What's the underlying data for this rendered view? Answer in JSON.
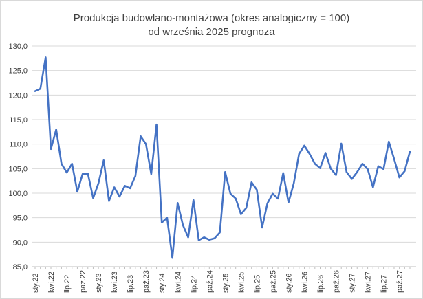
{
  "chart_data": {
    "type": "line",
    "title": "Produkcja budowlano-montażowa (okres analogiczny = 100)",
    "subtitle": "od września 2025 prognoza",
    "xlabel": "",
    "ylabel": "",
    "ylim": [
      85,
      130
    ],
    "yticks": [
      "85,0",
      "90,0",
      "95,0",
      "100,0",
      "105,0",
      "110,0",
      "115,0",
      "120,0",
      "125,0",
      "130,0"
    ],
    "grid": true,
    "legend": "none",
    "series_color": "#4472c4",
    "x_tick_labels": [
      "sty.22",
      "kwi.22",
      "lip.22",
      "paź.22",
      "sty.23",
      "kwi.23",
      "lip.23",
      "paź.23",
      "sty.24",
      "kwi.24",
      "lip.24",
      "paź.24",
      "sty.25",
      "kwi.25",
      "lip.25",
      "paź.25",
      "sty.26",
      "kwi.26",
      "lip.26",
      "paź.26",
      "sty.27",
      "kwi.27",
      "lip.27",
      "paź.27"
    ],
    "x_tick_positions": [
      0,
      3,
      6,
      9,
      12,
      15,
      18,
      21,
      24,
      27,
      30,
      33,
      36,
      39,
      42,
      45,
      48,
      51,
      54,
      57,
      60,
      63,
      66,
      69
    ],
    "values": [
      120.8,
      121.3,
      127.7,
      109.0,
      113.0,
      106.0,
      104.2,
      106.0,
      100.3,
      103.9,
      104.0,
      99.0,
      102.0,
      106.7,
      98.4,
      101.2,
      99.3,
      101.5,
      101.0,
      103.5,
      111.6,
      110.0,
      103.9,
      114.0,
      94.0,
      95.0,
      86.8,
      98.0,
      93.5,
      91.0,
      98.6,
      90.4,
      91.0,
      90.5,
      90.8,
      92.0,
      104.3,
      99.9,
      98.9,
      95.7,
      97.0,
      102.2,
      100.7,
      93.0,
      97.9,
      99.9,
      98.9,
      104.1,
      98.1,
      102.0,
      108.0,
      109.7,
      108.0,
      106.0,
      105.1,
      108.2,
      105.0,
      103.7,
      110.1,
      104.3,
      102.9,
      104.3,
      106.0,
      104.9,
      101.2,
      105.5,
      104.9,
      110.5,
      107.0,
      103.2,
      104.5,
      108.5
    ]
  }
}
